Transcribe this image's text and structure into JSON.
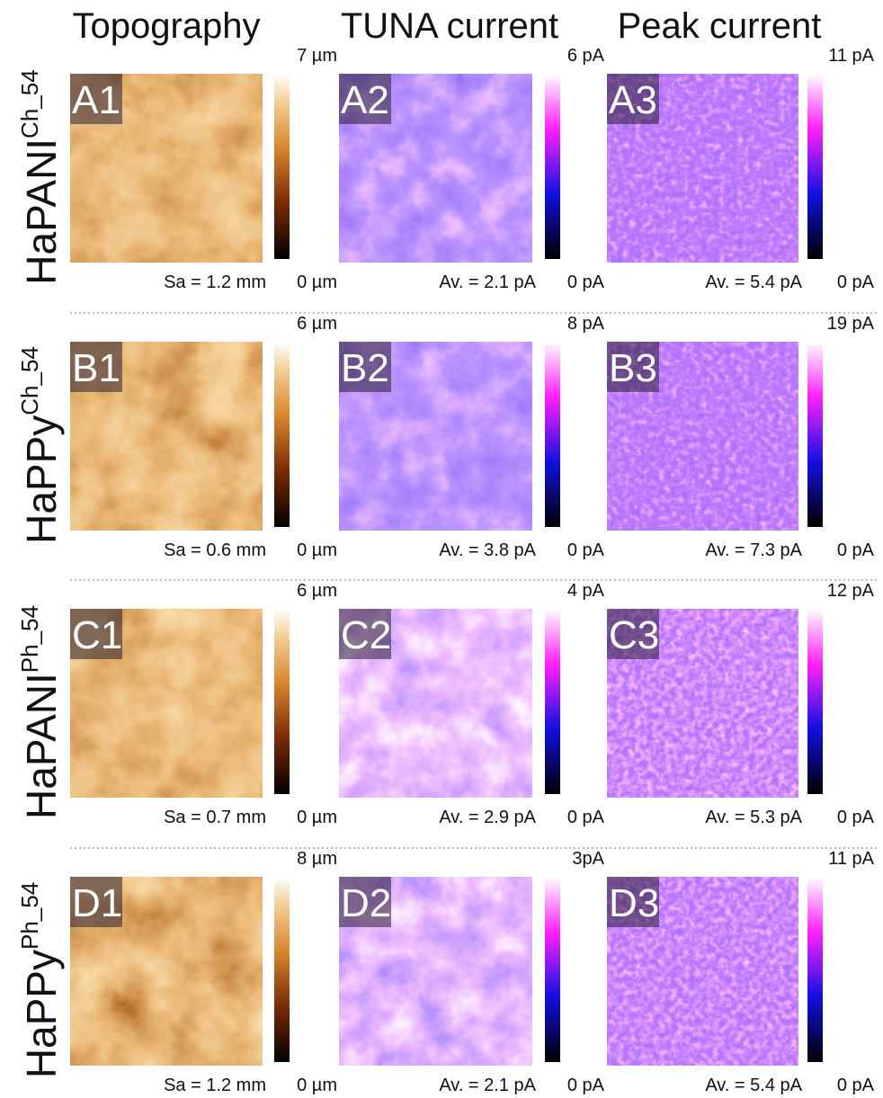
{
  "column_headers": [
    "Topography",
    "TUNA current",
    "Peak current"
  ],
  "rows": [
    {
      "label": "HaPANI",
      "superscript": "Ch_54",
      "panels": [
        {
          "label": "A1",
          "scale_max": "7 µm",
          "scale_min": "0 µm",
          "stat": "Sa = 1.2 mm"
        },
        {
          "label": "A2",
          "scale_max": "6 pA",
          "scale_min": "0 pA",
          "stat": "Av. = 2.1 pA"
        },
        {
          "label": "A3",
          "scale_max": "11 pA",
          "scale_min": "0 pA",
          "stat": "Av. = 5.4 pA"
        }
      ]
    },
    {
      "label": "HaPPy",
      "superscript": "Ch_54",
      "panels": [
        {
          "label": "B1",
          "scale_max": "6 µm",
          "scale_min": "0 µm",
          "stat": "Sa = 0.6 mm"
        },
        {
          "label": "B2",
          "scale_max": "8 pA",
          "scale_min": "0 pA",
          "stat": "Av. = 3.8 pA"
        },
        {
          "label": "B3",
          "scale_max": "19 pA",
          "scale_min": "0 pA",
          "stat": "Av. = 7.3 pA"
        }
      ]
    },
    {
      "label": "HaPANI",
      "superscript": "Ph_54",
      "panels": [
        {
          "label": "C1",
          "scale_max": "6 µm",
          "scale_min": "0 µm",
          "stat": "Sa = 0.7 mm"
        },
        {
          "label": "C2",
          "scale_max": "4 pA",
          "scale_min": "0 pA",
          "stat": "Av. = 2.9 pA"
        },
        {
          "label": "C3",
          "scale_max": "12 pA",
          "scale_min": "0 pA",
          "stat": "Av. = 5.3 pA"
        }
      ]
    },
    {
      "label": "HaPPy",
      "superscript": "Ph_54",
      "panels": [
        {
          "label": "D1",
          "scale_max": "8 µm",
          "scale_min": "0 µm",
          "stat": "Sa = 1.2 mm"
        },
        {
          "label": "D2",
          "scale_max": "3pA",
          "scale_min": "0 pA",
          "stat": "Av. = 2.1 pA"
        },
        {
          "label": "D3",
          "scale_max": "11 pA",
          "scale_min": "0 pA",
          "stat": "Av. = 5.4 pA"
        }
      ]
    }
  ]
}
